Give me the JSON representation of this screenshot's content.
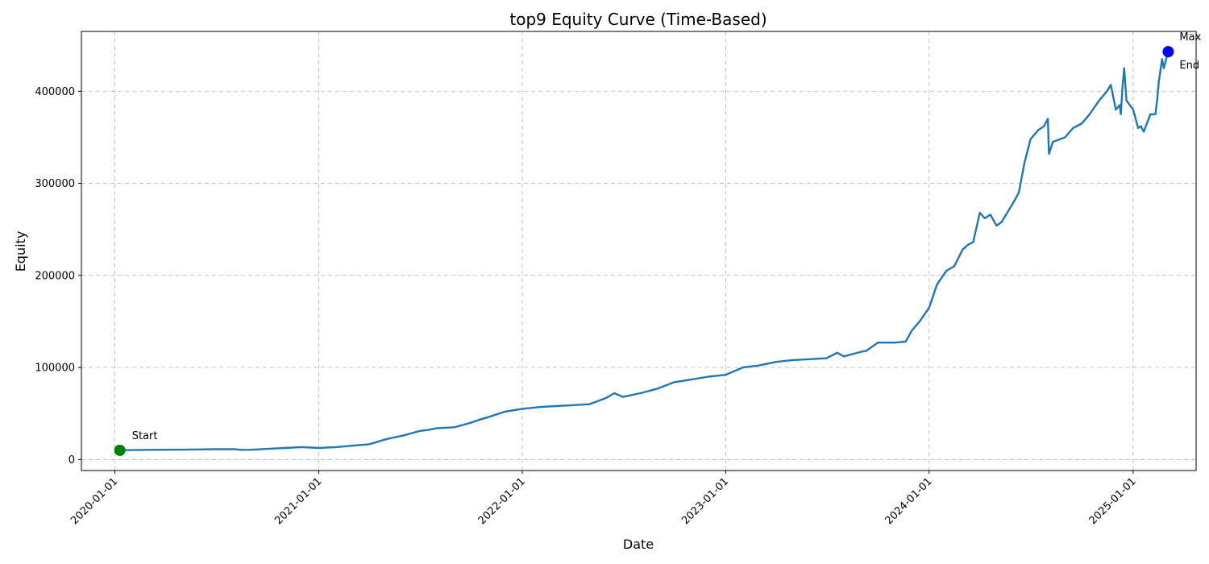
{
  "chart_data": {
    "type": "line",
    "title": "top9 Equity Curve (Time-Based)",
    "xlabel": "Date",
    "ylabel": "Equity",
    "x_axis": "date",
    "xlim": [
      "2019-11-02",
      "2025-04-24"
    ],
    "ylim": [
      -12000,
      465000
    ],
    "x_ticks": [
      "2020-01-01",
      "2021-01-01",
      "2022-01-01",
      "2023-01-01",
      "2024-01-01",
      "2025-01-01"
    ],
    "y_ticks": [
      0,
      100000,
      200000,
      300000,
      400000
    ],
    "y_tick_labels": [
      "0",
      "100000",
      "200000",
      "300000",
      "400000"
    ],
    "grid": true,
    "line_color": "#1f77b4",
    "series": [
      {
        "x": [
          "2020-01-10",
          "2020-02-01",
          "2020-03-01",
          "2020-04-01",
          "2020-05-01",
          "2020-06-01",
          "2020-07-01",
          "2020-08-01",
          "2020-08-15",
          "2020-09-01",
          "2020-10-01",
          "2020-11-01",
          "2020-12-01",
          "2021-01-01",
          "2021-02-01",
          "2021-03-01",
          "2021-04-01",
          "2021-04-10",
          "2021-05-01",
          "2021-06-01",
          "2021-07-01",
          "2021-07-15",
          "2021-08-01",
          "2021-09-01",
          "2021-10-01",
          "2021-10-15",
          "2021-11-01",
          "2021-12-01",
          "2022-01-01",
          "2022-02-01",
          "2022-03-01",
          "2022-04-01",
          "2022-05-01",
          "2022-05-15",
          "2022-06-01",
          "2022-06-15",
          "2022-07-01",
          "2022-08-01",
          "2022-09-01",
          "2022-10-01",
          "2022-11-01",
          "2022-12-01",
          "2023-01-01",
          "2023-02-01",
          "2023-03-01",
          "2023-04-01",
          "2023-05-01",
          "2023-06-01",
          "2023-07-01",
          "2023-07-20",
          "2023-08-01",
          "2023-09-01",
          "2023-09-10",
          "2023-10-01",
          "2023-11-01",
          "2023-11-20",
          "2023-12-01",
          "2023-12-15",
          "2024-01-01",
          "2024-01-15",
          "2024-02-01",
          "2024-02-15",
          "2024-03-01",
          "2024-03-10",
          "2024-03-20",
          "2024-04-01",
          "2024-04-10",
          "2024-04-20",
          "2024-05-01",
          "2024-05-10",
          "2024-05-20",
          "2024-06-01",
          "2024-06-10",
          "2024-06-20",
          "2024-07-01",
          "2024-07-15",
          "2024-07-25",
          "2024-08-01",
          "2024-08-03",
          "2024-08-10",
          "2024-09-01",
          "2024-09-15",
          "2024-10-01",
          "2024-10-15",
          "2024-11-01",
          "2024-11-15",
          "2024-11-22",
          "2024-12-01",
          "2024-12-08",
          "2024-12-10",
          "2024-12-13",
          "2024-12-16",
          "2024-12-20",
          "2025-01-01",
          "2025-01-10",
          "2025-01-15",
          "2025-01-20",
          "2025-02-01",
          "2025-02-10",
          "2025-02-13",
          "2025-02-16",
          "2025-02-22",
          "2025-02-25",
          "2025-03-05"
        ],
        "y": [
          10000,
          10200,
          10500,
          10600,
          10700,
          10900,
          11200,
          11300,
          10500,
          10600,
          11500,
          12500,
          13500,
          12500,
          13500,
          15000,
          16500,
          18000,
          22000,
          26000,
          31000,
          32000,
          34000,
          35000,
          40000,
          43000,
          46000,
          52000,
          55000,
          57000,
          58000,
          59000,
          60000,
          63000,
          67000,
          72000,
          68000,
          72000,
          77000,
          84000,
          87000,
          90000,
          92000,
          100000,
          102000,
          106000,
          108000,
          109000,
          110000,
          116000,
          112000,
          117000,
          118000,
          127000,
          127000,
          128000,
          140000,
          150000,
          165000,
          190000,
          205000,
          210000,
          228000,
          233000,
          236000,
          268000,
          262000,
          266000,
          254000,
          258000,
          268000,
          280000,
          290000,
          322000,
          348000,
          358000,
          362000,
          370000,
          332000,
          345000,
          350000,
          360000,
          365000,
          375000,
          390000,
          400000,
          407000,
          380000,
          385000,
          375000,
          405000,
          425000,
          390000,
          380000,
          360000,
          362000,
          356000,
          375000,
          375000,
          390000,
          410000,
          435000,
          425000,
          443000
        ]
      }
    ],
    "annotations": [
      {
        "label": "Start",
        "x": "2020-01-10",
        "y": 10000,
        "color": "#008000"
      },
      {
        "label": "Max",
        "x": "2025-03-05",
        "y": 443000,
        "color": "#0000ff"
      },
      {
        "label": "End",
        "x": "2025-03-05",
        "y": 443000,
        "color": "#0000ff"
      }
    ]
  }
}
